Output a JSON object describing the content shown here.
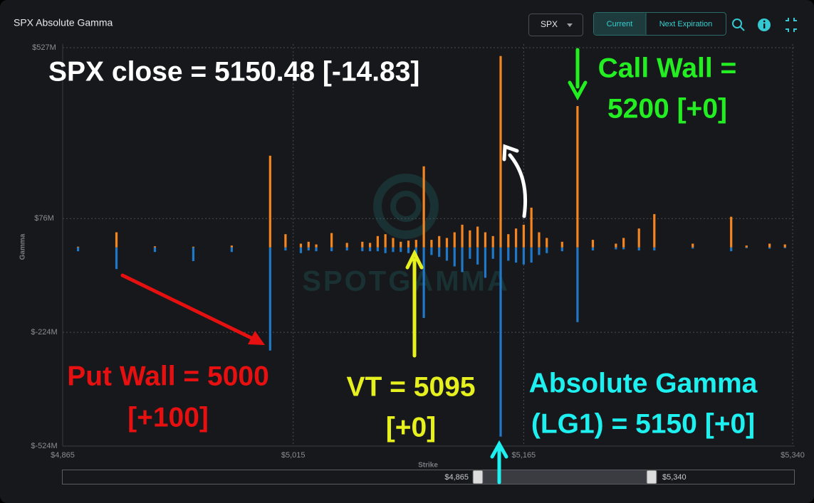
{
  "header": {
    "title": "SPX Absolute Gamma",
    "symbol": "SPX",
    "buttons": [
      "Current",
      "Next Expiration"
    ]
  },
  "chart_data": {
    "type": "bar",
    "watermark": "SPOTGAMMA",
    "x_label": "Strike",
    "y_label": "Gamma",
    "x": [
      4875,
      4900,
      4925,
      4950,
      4975,
      5000,
      5010,
      5020,
      5025,
      5030,
      5040,
      5050,
      5060,
      5065,
      5070,
      5075,
      5080,
      5085,
      5090,
      5095,
      5100,
      5105,
      5110,
      5115,
      5120,
      5125,
      5130,
      5135,
      5140,
      5145,
      5150,
      5155,
      5160,
      5165,
      5170,
      5175,
      5180,
      5190,
      5200,
      5210,
      5225,
      5230,
      5240,
      5250,
      5275,
      5300,
      5310,
      5325,
      5335
    ],
    "series": [
      {
        "color": "#f5861f",
        "values": [
          2,
          40,
          3,
          2,
          5,
          242,
          35,
          10,
          15,
          8,
          38,
          12,
          15,
          12,
          30,
          35,
          25,
          15,
          18,
          20,
          214,
          20,
          30,
          25,
          40,
          60,
          45,
          55,
          40,
          30,
          505,
          35,
          50,
          60,
          105,
          40,
          25,
          15,
          373,
          20,
          10,
          25,
          50,
          88,
          10,
          81,
          5,
          10,
          8
        ]
      },
      {
        "color": "#1f78c8",
        "values": [
          -10,
          -57,
          -12,
          -36,
          -12,
          -272,
          -8,
          -15,
          -8,
          -10,
          -10,
          -8,
          -10,
          -10,
          -10,
          -15,
          -12,
          -12,
          -15,
          -20,
          -186,
          -20,
          -25,
          -35,
          -50,
          -65,
          -30,
          -45,
          -80,
          -30,
          -499,
          -35,
          -40,
          -45,
          -40,
          -20,
          -15,
          -10,
          -197,
          -8,
          -5,
          -5,
          -8,
          -8,
          -3,
          -10,
          -2,
          -3,
          -2
        ]
      }
    ],
    "xlim": [
      4865,
      5340
    ],
    "xticks": [
      {
        "value": 4865,
        "label": "$4,865"
      },
      {
        "value": 5015,
        "label": "$5,015"
      },
      {
        "value": 5165,
        "label": "$5,165"
      },
      {
        "value": 5340,
        "label": "$5,340"
      }
    ],
    "ylim": [
      -524,
      527
    ],
    "yticks": [
      {
        "value": 527,
        "label": "$527M"
      },
      {
        "value": 76,
        "label": "$76M"
      },
      {
        "value": -224,
        "label": "$-224M"
      },
      {
        "value": -524,
        "label": "$-524M"
      }
    ],
    "grid": true,
    "range_slider": {
      "from_label": "$4,865",
      "to_label": "$5,340"
    },
    "annotations": [
      {
        "lines": [
          "SPX close = 5150.48 [-14.83]"
        ],
        "color": "#ffffff"
      },
      {
        "lines": [
          "Call Wall =",
          "5200 [+0]"
        ],
        "color": "#22ee22"
      },
      {
        "lines": [
          "Put Wall = 5000",
          "[+100]"
        ],
        "color": "#e61010"
      },
      {
        "lines": [
          "VT = 5095",
          "[+0]"
        ],
        "color": "#e6f01e"
      },
      {
        "lines": [
          "Absolute Gamma",
          "(LG1) = 5150 [+0]"
        ],
        "color": "#1ef0f0"
      }
    ]
  }
}
